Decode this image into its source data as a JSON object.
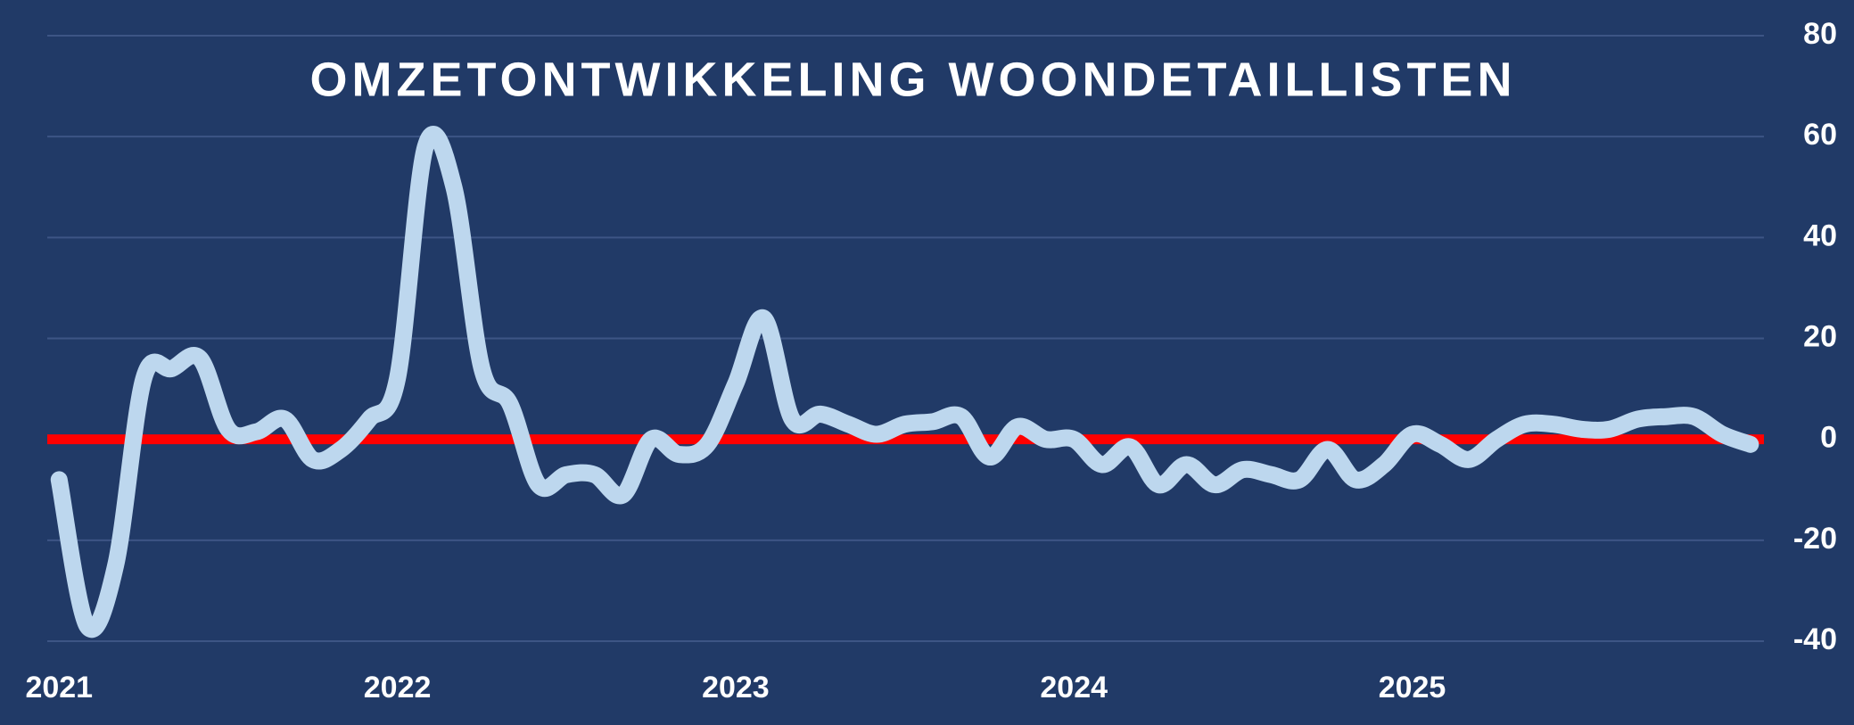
{
  "chart_data": {
    "type": "line",
    "title": "OMZETONTWIKKELING WOONDETAILLISTEN",
    "x": [
      2021,
      2021.083,
      2021.167,
      2021.25,
      2021.333,
      2021.417,
      2021.5,
      2021.583,
      2021.667,
      2021.75,
      2021.833,
      2021.917,
      2022,
      2022.083,
      2022.167,
      2022.25,
      2022.333,
      2022.417,
      2022.5,
      2022.583,
      2022.667,
      2022.75,
      2022.833,
      2022.917,
      2023,
      2023.083,
      2023.167,
      2023.25,
      2023.333,
      2023.417,
      2023.5,
      2023.583,
      2023.667,
      2023.75,
      2023.833,
      2023.917,
      2024,
      2024.083,
      2024.167,
      2024.25,
      2024.333,
      2024.417,
      2024.5,
      2024.583,
      2024.667,
      2024.75,
      2024.833,
      2024.917,
      2025,
      2025.083,
      2025.167,
      2025.25,
      2025.333,
      2025.417,
      2025.5,
      2025.583,
      2025.667,
      2025.75,
      2025.833,
      2025.917,
      2026
    ],
    "series": [
      {
        "color": "#bdd7ee",
        "values": [
          -8,
          -37,
          -25,
          12,
          14,
          16,
          2,
          1.5,
          4,
          -4,
          -2,
          4,
          12,
          58,
          50,
          14,
          7,
          -9,
          -7,
          -7,
          -11,
          0,
          -3,
          -1,
          11,
          24,
          4,
          5,
          3,
          1,
          3,
          3.5,
          4.5,
          -3.5,
          2.5,
          0,
          0,
          -5,
          -1.5,
          -9,
          -5,
          -9,
          -6,
          -7,
          -8,
          -2,
          -8,
          -5,
          1,
          -1,
          -4,
          0,
          3,
          3,
          2,
          2,
          4,
          4.5,
          4.5,
          1,
          -1
        ]
      }
    ],
    "reference_line": {
      "value": 0,
      "color": "#ff0000"
    },
    "xlim": [
      2020.965,
      2026.04
    ],
    "xticks": [
      2021,
      2022,
      2023,
      2024,
      2025
    ],
    "ylim": [
      -40,
      80
    ],
    "yticks": [
      -40,
      -20,
      0,
      20,
      40,
      60,
      80
    ],
    "grid": true
  }
}
